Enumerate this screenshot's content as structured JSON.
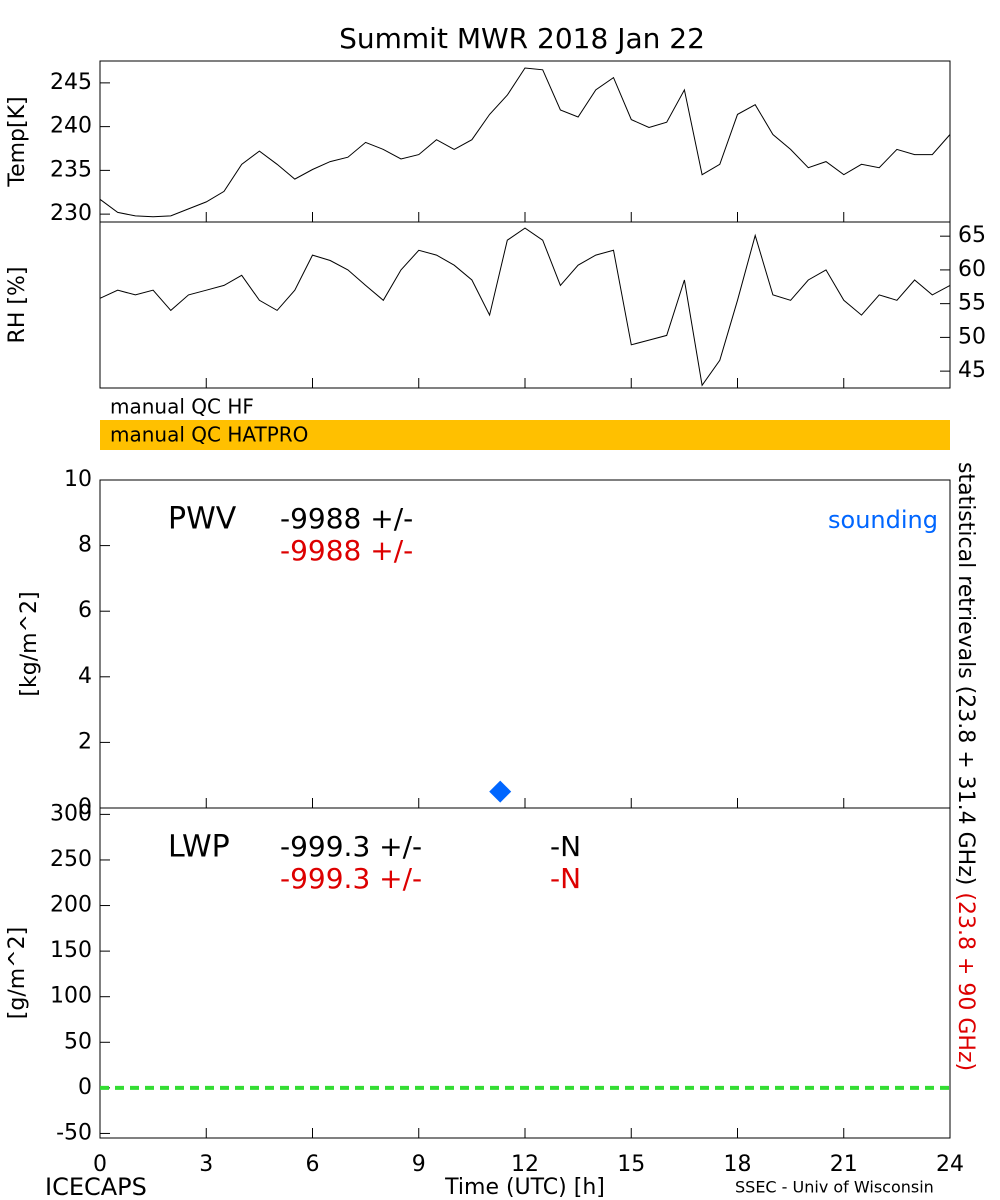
{
  "title": "Summit MWR 2018 Jan 22",
  "x_axis": {
    "label": "Time (UTC) [h]",
    "xlim": [
      0,
      24
    ],
    "xticks": [
      0,
      3,
      6,
      9,
      12,
      15,
      18,
      21,
      24
    ]
  },
  "qc_flags": [
    {
      "label": "manual QC HF",
      "color": "#ffffff"
    },
    {
      "label": "manual QC HATPRO",
      "color": "#ffc000"
    }
  ],
  "side_labels": [
    {
      "text": "statistical retrievals (23.8 + 31.4 GHz)",
      "color": "#000000"
    },
    {
      "text": "(23.8 + 90 GHz)",
      "color": "#dd0000"
    }
  ],
  "footer": {
    "left": "ICECAPS",
    "right": "SSEC - Univ of Wisconsin"
  },
  "chart_data": [
    {
      "type": "line",
      "ylabel": "Temp[K]",
      "ylim": [
        229.1,
        247.5
      ],
      "yticks": [
        230,
        235,
        240,
        245
      ],
      "yaxis_side": "left",
      "x": [
        0,
        0.5,
        1,
        1.5,
        2,
        2.5,
        3,
        3.5,
        4,
        4.5,
        5,
        5.5,
        6,
        6.5,
        7,
        7.5,
        8,
        8.5,
        9,
        9.5,
        10,
        10.5,
        11,
        11.5,
        12,
        12.5,
        13,
        13.5,
        14,
        14.5,
        15,
        15.5,
        16,
        16.5,
        17,
        17.5,
        18,
        18.5,
        19,
        19.5,
        20,
        20.5,
        21,
        21.5,
        22,
        22.5,
        23,
        23.5,
        24
      ],
      "series": [
        {
          "color": "#000000",
          "values": [
            231.7,
            230.2,
            229.8,
            229.7,
            229.8,
            230.6,
            231.4,
            232.6,
            235.7,
            237.2,
            235.7,
            234.0,
            235.1,
            236.0,
            236.5,
            238.2,
            237.4,
            236.3,
            236.8,
            238.5,
            237.4,
            238.5,
            241.4,
            243.6,
            246.7,
            246.5,
            241.9,
            241.1,
            244.2,
            245.6,
            240.8,
            239.9,
            240.5,
            244.2,
            234.5,
            235.7,
            241.4,
            242.5,
            239.1,
            237.4,
            235.3,
            236.0,
            234.5,
            235.7,
            235.3,
            237.4,
            236.8,
            236.8,
            239.1
          ]
        }
      ]
    },
    {
      "type": "line",
      "ylabel": "RH [%]",
      "ylim": [
        42.5,
        67.1
      ],
      "yticks": [
        45,
        50,
        55,
        60,
        65
      ],
      "yaxis_side": "right",
      "x": [
        0,
        0.5,
        1,
        1.5,
        2,
        2.5,
        3,
        3.5,
        4,
        4.5,
        5,
        5.5,
        6,
        6.5,
        7,
        7.5,
        8,
        8.5,
        9,
        9.5,
        10,
        10.5,
        11,
        11.5,
        12,
        12.5,
        13,
        13.5,
        14,
        14.5,
        15,
        15.5,
        16,
        16.5,
        17,
        17.5,
        18,
        18.5,
        19,
        19.5,
        20,
        20.5,
        21,
        21.5,
        22,
        22.5,
        23,
        23.5,
        24
      ],
      "series": [
        {
          "color": "#000000",
          "values": [
            55.8,
            57.0,
            56.3,
            57.0,
            54.0,
            56.3,
            57.0,
            57.7,
            59.2,
            55.5,
            54.0,
            57.0,
            62.2,
            61.4,
            60.0,
            57.7,
            55.5,
            60.0,
            62.9,
            62.2,
            60.7,
            58.5,
            53.3,
            64.4,
            66.2,
            64.4,
            57.7,
            60.7,
            62.2,
            62.9,
            48.9,
            49.6,
            50.3,
            58.5,
            42.9,
            46.6,
            55.5,
            65.1,
            56.3,
            55.5,
            58.5,
            60.0,
            55.5,
            53.3,
            56.3,
            55.5,
            58.5,
            56.3,
            57.7
          ]
        }
      ]
    },
    {
      "type": "scatter",
      "ylabel": "[kg/m^2]",
      "ylim": [
        0,
        10
      ],
      "yticks": [
        0,
        2,
        4,
        6,
        8,
        10
      ],
      "yaxis_side": "left",
      "label": "PWV",
      "readouts": [
        {
          "text": "-9988 +/-",
          "color": "#000000"
        },
        {
          "text": "-9988 +/-",
          "color": "#dd0000"
        }
      ],
      "series": [
        {
          "name": "sounding",
          "color": "#0066ff",
          "marker": "diamond",
          "x": [
            11.3
          ],
          "values": [
            0.5
          ]
        }
      ]
    },
    {
      "type": "hline",
      "ylabel": "[g/m^2]",
      "ylim": [
        -55,
        307
      ],
      "yticks": [
        -50,
        0,
        50,
        100,
        150,
        200,
        250,
        300
      ],
      "yaxis_side": "left",
      "label": "LWP",
      "readouts": [
        {
          "text": "-999.3 +/-",
          "suffix": "-N",
          "color": "#000000"
        },
        {
          "text": "-999.3 +/-",
          "suffix": "-N",
          "color": "#dd0000"
        }
      ],
      "hline": {
        "value": 0,
        "color": "#33dd33"
      }
    }
  ]
}
